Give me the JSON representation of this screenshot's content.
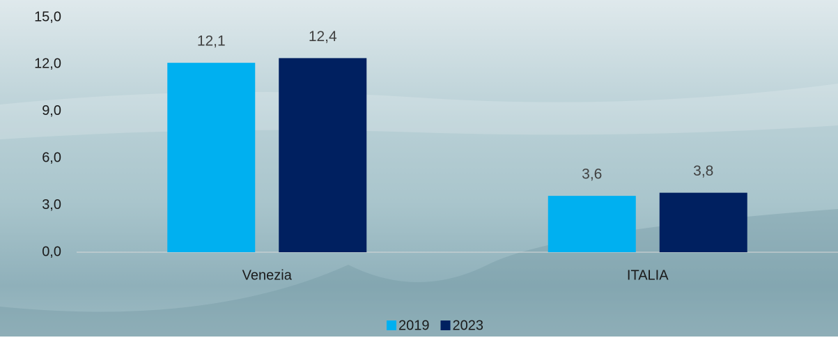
{
  "chart_data": {
    "type": "bar",
    "categories": [
      "Venezia",
      "ITALIA"
    ],
    "series": [
      {
        "name": "2019",
        "color": "#00b0f0",
        "values": [
          12.1,
          3.6
        ],
        "value_labels": [
          "12,1",
          "3,6"
        ]
      },
      {
        "name": "2023",
        "color": "#002060",
        "values": [
          12.4,
          3.8
        ],
        "value_labels": [
          "12,4",
          "3,8"
        ]
      }
    ],
    "ylim": [
      0,
      15
    ],
    "yticks": [
      {
        "value": 0,
        "label": "0,0"
      },
      {
        "value": 3,
        "label": "3,0"
      },
      {
        "value": 6,
        "label": "6,0"
      },
      {
        "value": 9,
        "label": "9,0"
      },
      {
        "value": 12,
        "label": "12,0"
      },
      {
        "value": 15,
        "label": "15,0"
      }
    ],
    "legend": "bottom"
  }
}
